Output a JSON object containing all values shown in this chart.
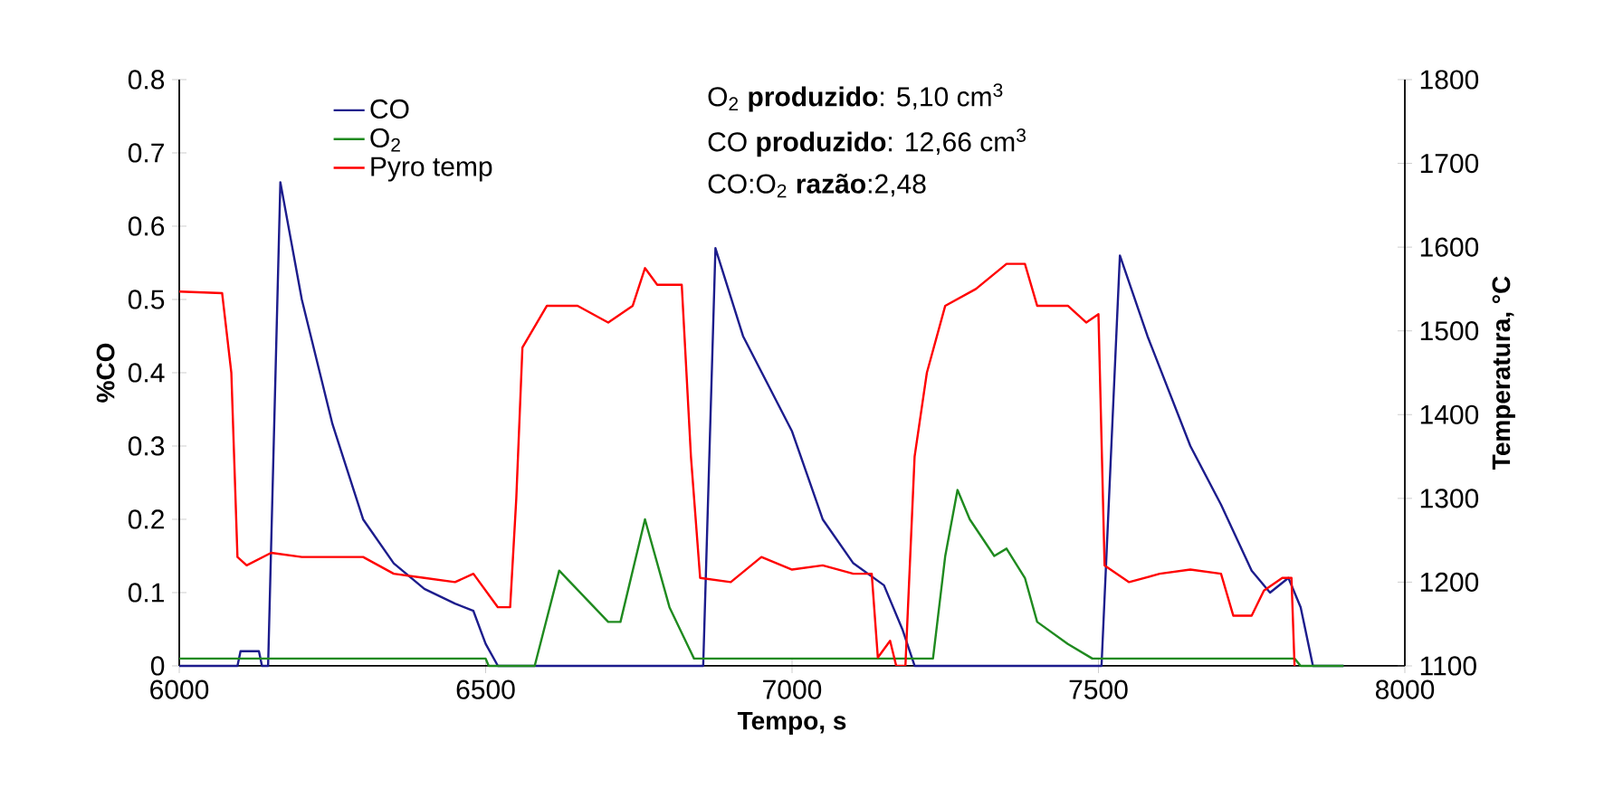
{
  "chart_data": {
    "type": "line",
    "xlabel": "Tempo, s",
    "ylabel": "%CO",
    "y2label": "Temperatura, °C",
    "xlim": [
      6000,
      8000
    ],
    "xticks": [
      6000,
      6500,
      7000,
      7500,
      8000
    ],
    "ylim": [
      0,
      0.8
    ],
    "yticks": [
      0,
      0.1,
      0.2,
      0.3,
      0.4,
      0.5,
      0.6,
      0.7,
      0.8
    ],
    "y2lim": [
      1100,
      1800
    ],
    "y2ticks": [
      1100,
      1200,
      1300,
      1400,
      1500,
      1600,
      1700,
      1800
    ],
    "legend": "top left",
    "grid": false,
    "marker": "none",
    "line_style": "solid",
    "annotations": [
      "O$_{2}$ **produzido**: 5,10 cm$^{3}$",
      "CO **produzido**: 12,66 cm$^{3}$",
      "CO:O$_{2}$ **razão**:2,48"
    ],
    "series": [
      {
        "name": "CO",
        "color": "#1c1c8c",
        "x": [
          6000,
          6095,
          6100,
          6130,
          6135,
          6145,
          6165,
          6200,
          6250,
          6300,
          6350,
          6400,
          6450,
          6480,
          6500,
          6520,
          6855,
          6875,
          6920,
          7000,
          7050,
          7100,
          7150,
          7180,
          7200,
          7505,
          7535,
          7580,
          7650,
          7700,
          7750,
          7780,
          7810,
          7830,
          7850,
          7900
        ],
        "values": [
          0,
          0,
          0.02,
          0.02,
          0,
          0,
          0.66,
          0.5,
          0.33,
          0.2,
          0.14,
          0.105,
          0.085,
          0.075,
          0.03,
          0,
          0,
          0.57,
          0.45,
          0.32,
          0.2,
          0.14,
          0.11,
          0.05,
          0,
          0,
          0.56,
          0.45,
          0.3,
          0.22,
          0.13,
          0.1,
          0.12,
          0.08,
          0,
          0
        ]
      },
      {
        "name": "O$_{2}$",
        "color": "#1f8a1f",
        "x": [
          6000,
          6500,
          6505,
          6580,
          6620,
          6700,
          6720,
          6760,
          6800,
          6840,
          7230,
          7250,
          7270,
          7290,
          7330,
          7350,
          7380,
          7400,
          7450,
          7490,
          7820,
          7830,
          7900
        ],
        "values": [
          0.01,
          0.01,
          0,
          0,
          0.13,
          0.06,
          0.06,
          0.2,
          0.08,
          0.01,
          0.01,
          0.15,
          0.24,
          0.2,
          0.15,
          0.16,
          0.12,
          0.06,
          0.03,
          0.01,
          0.01,
          0,
          0
        ]
      },
      {
        "name": "Pyro temp",
        "color": "#ff0000",
        "axis": "y2",
        "x": [
          6000,
          6070,
          6085,
          6095,
          6110,
          6150,
          6200,
          6300,
          6350,
          6400,
          6450,
          6480,
          6510,
          6520,
          6540,
          6550,
          6560,
          6600,
          6650,
          6700,
          6740,
          6760,
          6780,
          6820,
          6835,
          6850,
          6900,
          6950,
          7000,
          7050,
          7100,
          7130,
          7140,
          7160,
          7170,
          7185,
          7200,
          7220,
          7250,
          7300,
          7350,
          7380,
          7400,
          7450,
          7480,
          7500,
          7510,
          7550,
          7600,
          7650,
          7700,
          7720,
          7750,
          7770,
          7800,
          7815,
          7820
        ],
        "values": [
          1547,
          1545,
          1450,
          1230,
          1220,
          1235,
          1230,
          1230,
          1210,
          1205,
          1200,
          1210,
          1180,
          1170,
          1170,
          1300,
          1480,
          1530,
          1530,
          1510,
          1530,
          1575,
          1555,
          1555,
          1350,
          1205,
          1200,
          1230,
          1215,
          1220,
          1210,
          1210,
          1110,
          1130,
          1100,
          1100,
          1350,
          1450,
          1530,
          1550,
          1580,
          1580,
          1530,
          1530,
          1510,
          1520,
          1220,
          1200,
          1210,
          1215,
          1210,
          1160,
          1160,
          1190,
          1205,
          1205,
          1100
        ]
      }
    ]
  }
}
